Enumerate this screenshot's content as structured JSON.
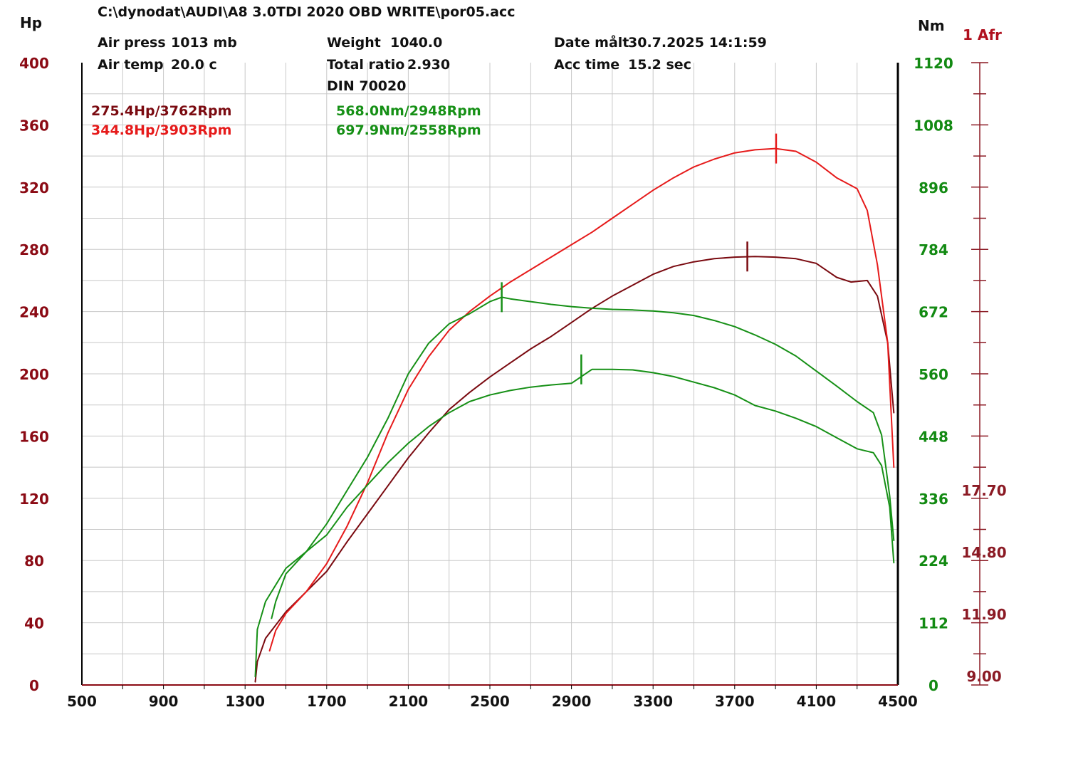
{
  "header": {
    "file_path": "C:\\dynodat\\AUDI\\A8 3.0TDI 2020 OBD WRITE\\por05.acc",
    "air_press_label": "Air press",
    "air_press_value": "1013 mb",
    "air_temp_label": "Air temp",
    "air_temp_value": "20.0 c",
    "weight_label": "Weight",
    "weight_value": "1040.0",
    "total_ratio_label": "Total ratio",
    "total_ratio_value": "2.930",
    "din": "DIN 70020",
    "date_label": "Date målt",
    "date_value": "30.7.2025 14:1:59",
    "acc_time_label": "Acc time",
    "acc_time_value": "15.2 sec"
  },
  "peaks": {
    "hp_1": "275.4Hp/3762Rpm",
    "hp_2": "344.8Hp/3903Rpm",
    "nm_1": "568.0Nm/2948Rpm",
    "nm_2": "697.9Nm/2558Rpm"
  },
  "units": {
    "left": "Hp",
    "right": "Nm",
    "afr": "1 Afr"
  },
  "colors": {
    "hp_axis": "#8b0a14",
    "nm_axis": "#138a13",
    "power_before": "#7a0a10",
    "power_after": "#e61a1a",
    "torque": "#169016",
    "grid": "#c8c8c8"
  },
  "chart_data": {
    "type": "line",
    "xlabel": "",
    "x_ticks": [
      500,
      900,
      1300,
      1700,
      2100,
      2500,
      2900,
      3300,
      3700,
      4100,
      4500
    ],
    "xlim": [
      500,
      4500
    ],
    "y_left": {
      "label": "Hp",
      "ylim": [
        0,
        400
      ],
      "ticks": [
        0,
        40,
        80,
        120,
        160,
        200,
        240,
        280,
        320,
        360,
        400
      ]
    },
    "y_right": {
      "label": "Nm",
      "ylim": [
        0,
        1120
      ],
      "ticks": [
        0,
        112,
        224,
        336,
        448,
        560,
        672,
        784,
        896,
        1008,
        1120
      ]
    },
    "afr_axis": {
      "label": "1 Afr",
      "tick_labels": [
        "9.00",
        "11.90",
        "14.80",
        "17.70"
      ],
      "tick_values": [
        9.0,
        11.9,
        14.8,
        17.7
      ]
    },
    "grid": true,
    "series": [
      {
        "axis": "hp",
        "peak_marker": [
          3762,
          275.4
        ],
        "points": [
          [
            1350,
            2
          ],
          [
            1360,
            15
          ],
          [
            1400,
            30
          ],
          [
            1500,
            47
          ],
          [
            1600,
            60
          ],
          [
            1700,
            73
          ],
          [
            1800,
            92
          ],
          [
            1900,
            110
          ],
          [
            2000,
            128
          ],
          [
            2100,
            146
          ],
          [
            2200,
            162
          ],
          [
            2300,
            177
          ],
          [
            2400,
            188
          ],
          [
            2500,
            198
          ],
          [
            2600,
            207
          ],
          [
            2700,
            216
          ],
          [
            2800,
            224
          ],
          [
            2900,
            233
          ],
          [
            3000,
            242
          ],
          [
            3100,
            250
          ],
          [
            3200,
            257
          ],
          [
            3300,
            264
          ],
          [
            3400,
            269
          ],
          [
            3500,
            272
          ],
          [
            3600,
            274
          ],
          [
            3700,
            275
          ],
          [
            3800,
            275.4
          ],
          [
            3900,
            275
          ],
          [
            4000,
            274
          ],
          [
            4100,
            271
          ],
          [
            4200,
            262
          ],
          [
            4270,
            259
          ],
          [
            4350,
            260
          ],
          [
            4400,
            250
          ],
          [
            4450,
            220
          ],
          [
            4470,
            190
          ],
          [
            4480,
            175
          ]
        ]
      },
      {
        "axis": "hp",
        "peak_marker": [
          3903,
          344.8
        ],
        "points": [
          [
            1420,
            22
          ],
          [
            1450,
            35
          ],
          [
            1500,
            46
          ],
          [
            1600,
            60
          ],
          [
            1700,
            78
          ],
          [
            1800,
            102
          ],
          [
            1900,
            130
          ],
          [
            2000,
            162
          ],
          [
            2100,
            190
          ],
          [
            2200,
            211
          ],
          [
            2300,
            228
          ],
          [
            2400,
            240
          ],
          [
            2500,
            250
          ],
          [
            2600,
            259
          ],
          [
            2700,
            267
          ],
          [
            2800,
            275
          ],
          [
            2900,
            283
          ],
          [
            3000,
            291
          ],
          [
            3100,
            300
          ],
          [
            3200,
            309
          ],
          [
            3300,
            318
          ],
          [
            3400,
            326
          ],
          [
            3500,
            333
          ],
          [
            3600,
            338
          ],
          [
            3700,
            342
          ],
          [
            3800,
            344
          ],
          [
            3900,
            344.8
          ],
          [
            4000,
            343
          ],
          [
            4100,
            336
          ],
          [
            4200,
            326
          ],
          [
            4300,
            319
          ],
          [
            4350,
            305
          ],
          [
            4400,
            270
          ],
          [
            4450,
            220
          ],
          [
            4480,
            140
          ]
        ]
      },
      {
        "axis": "nm",
        "peak_marker": [
          2948,
          568.0
        ],
        "points": [
          [
            1350,
            15
          ],
          [
            1360,
            100
          ],
          [
            1400,
            150
          ],
          [
            1500,
            210
          ],
          [
            1600,
            240
          ],
          [
            1700,
            270
          ],
          [
            1800,
            320
          ],
          [
            1900,
            360
          ],
          [
            2000,
            400
          ],
          [
            2100,
            435
          ],
          [
            2200,
            465
          ],
          [
            2300,
            490
          ],
          [
            2400,
            510
          ],
          [
            2500,
            522
          ],
          [
            2600,
            530
          ],
          [
            2700,
            536
          ],
          [
            2800,
            540
          ],
          [
            2900,
            543
          ],
          [
            3000,
            568
          ],
          [
            3100,
            568
          ],
          [
            3200,
            567
          ],
          [
            3300,
            562
          ],
          [
            3400,
            555
          ],
          [
            3500,
            545
          ],
          [
            3600,
            535
          ],
          [
            3700,
            522
          ],
          [
            3800,
            503
          ],
          [
            3900,
            493
          ],
          [
            4000,
            480
          ],
          [
            4100,
            465
          ],
          [
            4200,
            445
          ],
          [
            4300,
            425
          ],
          [
            4380,
            418
          ],
          [
            4420,
            395
          ],
          [
            4460,
            320
          ],
          [
            4480,
            220
          ]
        ]
      },
      {
        "axis": "nm",
        "peak_marker": [
          2558,
          697.9
        ],
        "points": [
          [
            1430,
            120
          ],
          [
            1450,
            150
          ],
          [
            1500,
            200
          ],
          [
            1600,
            240
          ],
          [
            1700,
            290
          ],
          [
            1800,
            350
          ],
          [
            1900,
            410
          ],
          [
            2000,
            480
          ],
          [
            2100,
            560
          ],
          [
            2200,
            615
          ],
          [
            2300,
            650
          ],
          [
            2400,
            668
          ],
          [
            2500,
            690
          ],
          [
            2558,
            697.9
          ],
          [
            2600,
            695
          ],
          [
            2700,
            690
          ],
          [
            2800,
            685
          ],
          [
            2900,
            681
          ],
          [
            3000,
            678
          ],
          [
            3100,
            676
          ],
          [
            3200,
            675
          ],
          [
            3300,
            673
          ],
          [
            3400,
            670
          ],
          [
            3500,
            665
          ],
          [
            3600,
            656
          ],
          [
            3700,
            645
          ],
          [
            3800,
            630
          ],
          [
            3900,
            613
          ],
          [
            4000,
            592
          ],
          [
            4100,
            565
          ],
          [
            4200,
            538
          ],
          [
            4300,
            510
          ],
          [
            4380,
            490
          ],
          [
            4420,
            450
          ],
          [
            4460,
            340
          ],
          [
            4480,
            260
          ]
        ]
      }
    ]
  }
}
